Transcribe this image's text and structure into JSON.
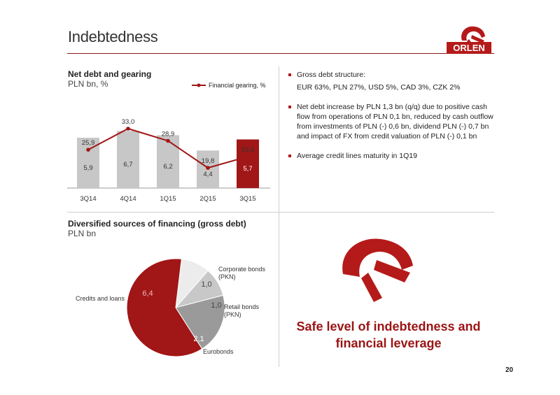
{
  "header": {
    "title": "Indebtedness",
    "logo_text": "ORLEN"
  },
  "colors": {
    "accent": "#9b1414",
    "bar_gray": "#c7c7c7",
    "bar_red": "#a11616"
  },
  "net_debt": {
    "title": "Net debt and gearing",
    "subtitle": "PLN bn, %"
  },
  "financing": {
    "title": "Diversified sources of financing (gross debt)",
    "subtitle": "PLN bn"
  },
  "bullets": [
    {
      "line1": "Gross debt structure:",
      "line2": "EUR 63%, PLN 27%, USD 5%, CAD 3%, CZK 2%"
    },
    {
      "text": "Net debt increase by PLN 1,3 bn (q/q) due to positive cash flow from operations of PLN 0,1 bn, reduced by cash outflow from investments of PLN (-) 0,6 bn, dividend PLN (-) 0,7 bn and impact of FX from credit valuation of PLN (-) 0,1 bn"
    },
    {
      "text": "Average credit lines maturity in 1Q19"
    }
  ],
  "callout": {
    "line1": "Safe level of indebtedness and",
    "line2": "financial leverage"
  },
  "page_number": "20",
  "chart_data": [
    {
      "type": "bar",
      "categories": [
        "3Q14",
        "4Q14",
        "1Q15",
        "2Q15",
        "3Q15"
      ],
      "values": [
        5.9,
        6.7,
        6.2,
        4.4,
        5.7
      ],
      "value_labels": [
        "5,9",
        "6,7",
        "6,2",
        "4,4",
        "5,7"
      ],
      "highlight_index": 4,
      "line_series": {
        "name": "Financial gearing, %",
        "values": [
          25.9,
          33.0,
          28.9,
          19.8,
          23.6
        ],
        "labels": [
          "25,9",
          "33,0",
          "28,9",
          "19,8",
          "23,6"
        ]
      },
      "title": "Net debt and gearing",
      "ylabel": "PLN bn, %",
      "legend": "top-right",
      "grid": false
    },
    {
      "type": "pie",
      "slices": [
        {
          "label": "Corporate bonds (PKN)",
          "label_lines": [
            "Corporate bonds",
            "(PKN)"
          ],
          "value": 1.0,
          "value_label": "1,0",
          "color": "#ececec"
        },
        {
          "label": "Retail bonds (PKN)",
          "label_lines": [
            "Retail bonds",
            "(PKN)"
          ],
          "value": 1.0,
          "value_label": "1,0",
          "color": "#c8c8c8"
        },
        {
          "label": "Eurobonds",
          "label_lines": [
            "Eurobonds"
          ],
          "value": 2.1,
          "value_label": "2,1",
          "color": "#9a9a9a"
        },
        {
          "label": "Credits and loans",
          "label_lines": [
            "Credits and loans"
          ],
          "value": 6.4,
          "value_label": "6,4",
          "color": "#a11616"
        }
      ],
      "title": "Diversified sources of financing (gross debt)",
      "subtitle": "PLN bn"
    }
  ]
}
